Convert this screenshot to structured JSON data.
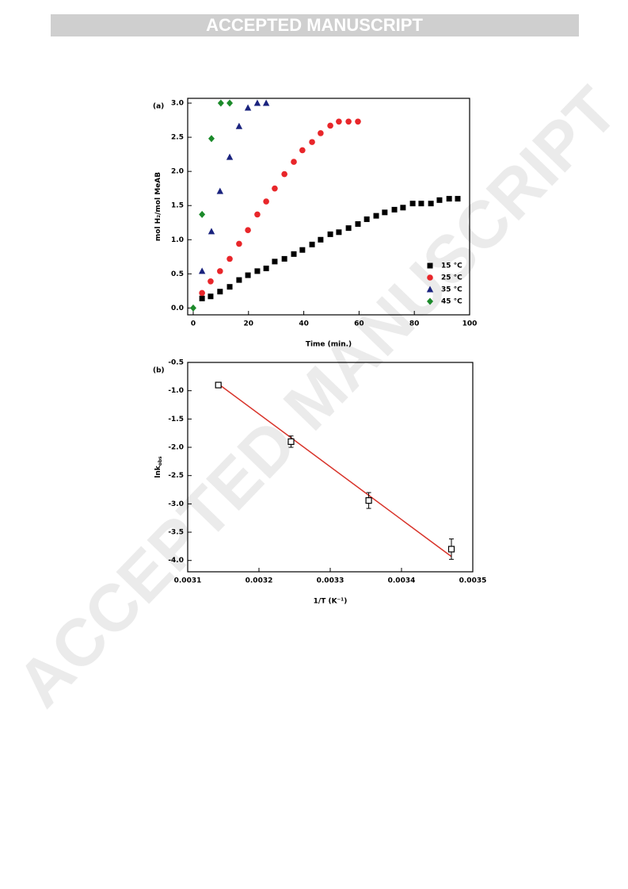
{
  "header": {
    "banner": "ACCEPTED MANUSCRIPT"
  },
  "watermark": "ACCEPTED MANUSCRIPT",
  "chart_data": [
    {
      "type": "scatter",
      "panel_label": "(a)",
      "x_label": "Time (min.)",
      "y_label": "mol H₂/mol MeAB",
      "xlim": [
        -2,
        100
      ],
      "xticks": [
        0,
        20,
        40,
        60,
        80,
        100
      ],
      "ylim": [
        -0.1,
        3.07
      ],
      "yticks": [
        {
          "value": 0,
          "label": "0.0"
        },
        0.5,
        {
          "value": 1,
          "label": "1.0"
        },
        1.5,
        {
          "value": 2,
          "label": "2.0"
        },
        2.5,
        {
          "value": 3,
          "label": "3.0"
        }
      ],
      "legend": "lower right",
      "series": [
        {
          "name": "15 °C",
          "color": "#000000",
          "marker": "square",
          "x": [
            3.2,
            6.3,
            9.7,
            13.2,
            16.6,
            19.8,
            23.2,
            26.4,
            29.5,
            33.0,
            36.4,
            39.5,
            43.0,
            46.1,
            49.6,
            52.7,
            56.2,
            59.6,
            62.8,
            66.2,
            69.3,
            72.8,
            75.9,
            79.4,
            82.5,
            86.0,
            89.1,
            92.6,
            95.7
          ],
          "values": [
            0.14,
            0.17,
            0.24,
            0.31,
            0.41,
            0.48,
            0.54,
            0.58,
            0.68,
            0.72,
            0.79,
            0.85,
            0.93,
            1.0,
            1.08,
            1.11,
            1.17,
            1.23,
            1.3,
            1.35,
            1.4,
            1.44,
            1.47,
            1.53,
            1.53,
            1.53,
            1.58,
            1.6,
            1.6
          ]
        },
        {
          "name": "25 °C",
          "color": "#e8262a",
          "marker": "circle",
          "x": [
            3.2,
            6.3,
            9.7,
            13.2,
            16.6,
            19.8,
            23.2,
            26.4,
            29.5,
            33.0,
            36.4,
            39.5,
            43.0,
            46.1,
            49.6,
            52.7,
            56.2,
            59.6
          ],
          "values": [
            0.22,
            0.39,
            0.54,
            0.72,
            0.94,
            1.14,
            1.37,
            1.56,
            1.75,
            1.96,
            2.14,
            2.31,
            2.43,
            2.56,
            2.67,
            2.73,
            2.73,
            2.73
          ]
        },
        {
          "name": "35 °C",
          "color": "#1a237e",
          "marker": "triangle",
          "x": [
            3.2,
            6.6,
            9.7,
            13.2,
            16.6,
            19.8,
            23.2,
            26.4
          ],
          "values": [
            0.54,
            1.12,
            1.71,
            2.21,
            2.66,
            2.93,
            3.0,
            3.0
          ]
        },
        {
          "name": "45 °C",
          "color": "#1b8a2a",
          "marker": "diamond",
          "x": [
            0,
            3.2,
            6.6,
            10.0,
            13.2
          ],
          "values": [
            0,
            1.37,
            2.48,
            3.0,
            3.0
          ]
        }
      ]
    },
    {
      "type": "scatter",
      "panel_label": "(b)",
      "x_label": "1/T (K⁻¹)",
      "y_label": "lnk",
      "y_label_subscript": "obs",
      "xlim": [
        0.0031,
        0.0035
      ],
      "xticks": [
        0.0031,
        0.0032,
        0.0033,
        0.0034,
        0.0035
      ],
      "ylim": [
        -4.2,
        -0.5
      ],
      "yticks": [
        -0.5,
        {
          "value": -1,
          "label": "-1.0"
        },
        -1.5,
        {
          "value": -2,
          "label": "-2.0"
        },
        -2.5,
        {
          "value": -3,
          "label": "-3.0"
        },
        -3.5,
        {
          "value": -4,
          "label": "-4.0"
        }
      ],
      "series": [
        {
          "color": "#000000",
          "marker": "open-square",
          "x": [
            0.003143,
            0.003245,
            0.003354,
            0.00347
          ],
          "values": [
            -0.9,
            -1.9,
            -2.94,
            -3.8
          ],
          "errors": [
            0.03,
            0.1,
            0.14,
            0.18
          ]
        }
      ],
      "fit": {
        "color": "#d8332a",
        "x": [
          0.003143,
          0.00347
        ],
        "values": [
          -0.88,
          -3.93
        ]
      }
    }
  ]
}
